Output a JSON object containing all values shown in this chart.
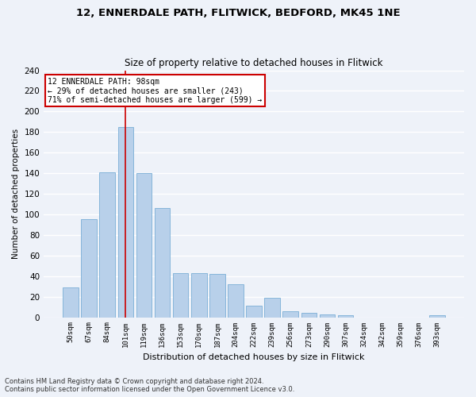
{
  "title_line1": "12, ENNERDALE PATH, FLITWICK, BEDFORD, MK45 1NE",
  "title_line2": "Size of property relative to detached houses in Flitwick",
  "xlabel": "Distribution of detached houses by size in Flitwick",
  "ylabel": "Number of detached properties",
  "categories": [
    "50sqm",
    "67sqm",
    "84sqm",
    "101sqm",
    "119sqm",
    "136sqm",
    "153sqm",
    "170sqm",
    "187sqm",
    "204sqm",
    "222sqm",
    "239sqm",
    "256sqm",
    "273sqm",
    "290sqm",
    "307sqm",
    "324sqm",
    "342sqm",
    "359sqm",
    "376sqm",
    "393sqm"
  ],
  "values": [
    29,
    95,
    141,
    185,
    140,
    106,
    43,
    43,
    42,
    32,
    11,
    19,
    6,
    4,
    3,
    2,
    0,
    0,
    0,
    0,
    2
  ],
  "bar_color": "#b8d0ea",
  "bar_edge_color": "#7aaed6",
  "background_color": "#eef2f9",
  "grid_color": "#ffffff",
  "vline_color": "#cc0000",
  "annotation_line1": "12 ENNERDALE PATH: 98sqm",
  "annotation_line2": "← 29% of detached houses are smaller (243)",
  "annotation_line3": "71% of semi-detached houses are larger (599) →",
  "annotation_box_color": "#ffffff",
  "annotation_box_edge_color": "#cc0000",
  "ylim": [
    0,
    240
  ],
  "yticks": [
    0,
    20,
    40,
    60,
    80,
    100,
    120,
    140,
    160,
    180,
    200,
    220,
    240
  ],
  "footnote_line1": "Contains HM Land Registry data © Crown copyright and database right 2024.",
  "footnote_line2": "Contains public sector information licensed under the Open Government Licence v3.0."
}
